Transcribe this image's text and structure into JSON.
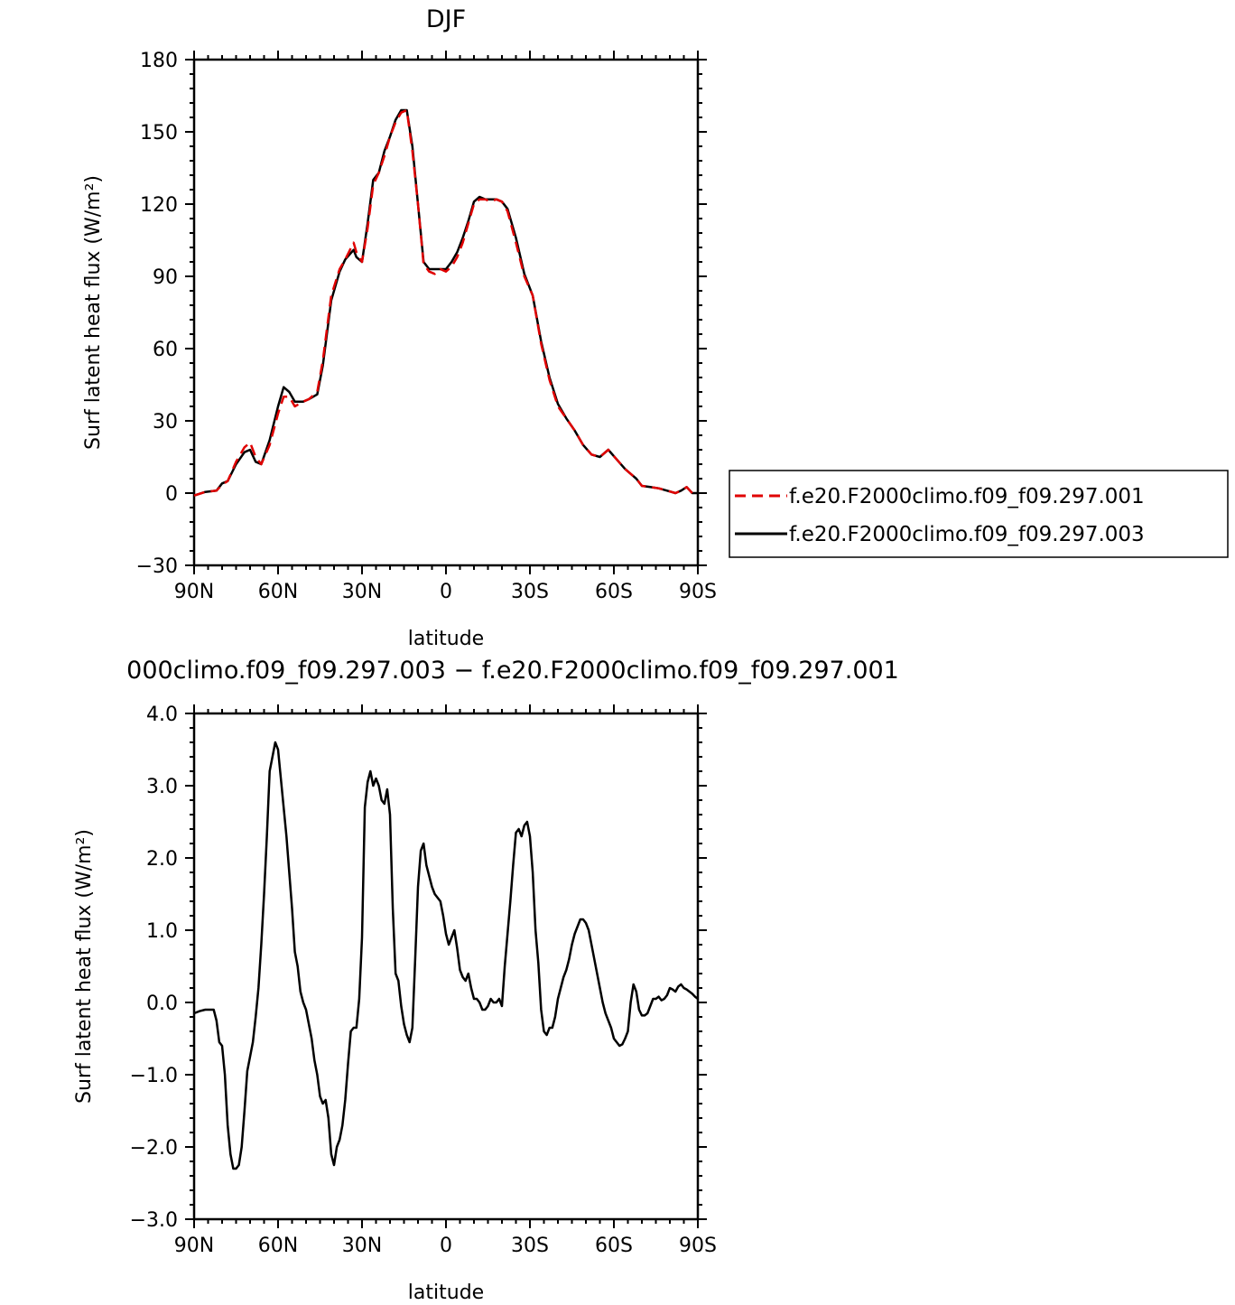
{
  "chart_data": [
    {
      "type": "line",
      "title": "DJF",
      "xlabel": "latitude",
      "ylabel": "Surf latent heat flux (W/m²)",
      "xlim": [
        90,
        -90
      ],
      "ylim": [
        -30,
        180
      ],
      "xticks": [
        90,
        60,
        30,
        0,
        -30,
        -60,
        -90
      ],
      "xtick_labels": [
        "90N",
        "60N",
        "30N",
        "0",
        "30S",
        "60S",
        "90S"
      ],
      "yticks": [
        -30,
        0,
        30,
        60,
        90,
        120,
        150,
        180
      ],
      "ytick_labels": [
        "−30",
        "0",
        "30",
        "60",
        "90",
        "120",
        "150",
        "180"
      ],
      "grid": false,
      "legend": "right",
      "series": [
        {
          "name": "f.e20.F2000climo.f09_f09.297.001",
          "color": "#e00000",
          "dash": "dashed",
          "x": [
            90,
            86,
            82,
            80,
            78,
            75,
            72,
            70,
            68,
            66,
            63,
            60,
            58,
            56,
            54,
            51,
            49,
            46,
            44,
            41,
            38,
            36,
            33,
            32,
            30,
            28,
            26,
            24,
            22,
            20,
            18,
            16,
            14,
            12,
            10,
            8,
            6,
            4,
            2,
            0,
            -2,
            -4,
            -6,
            -8,
            -10,
            -12,
            -14,
            -16,
            -18,
            -20,
            -22,
            -25,
            -28,
            -31,
            -34,
            -37,
            -40,
            -43,
            -46,
            -49,
            -52,
            -55,
            -58,
            -61,
            -64,
            -66,
            -68,
            -70,
            -73,
            -76,
            -79,
            -82,
            -84,
            -86,
            -88,
            -90
          ],
          "y": [
            -1,
            0.5,
            1,
            3.5,
            5,
            13,
            19,
            21,
            15,
            12,
            20,
            33,
            40,
            40,
            36,
            38,
            39,
            42,
            55,
            82,
            93,
            97,
            104,
            100,
            96,
            110,
            128,
            133,
            140,
            148,
            154,
            158,
            159,
            142,
            120,
            95,
            92,
            91,
            93,
            92,
            94,
            98,
            104,
            112,
            120,
            122,
            122,
            121,
            122,
            121,
            117,
            104,
            90,
            82,
            62,
            47,
            36,
            31,
            26,
            20,
            16,
            15,
            18,
            14,
            10,
            8,
            6,
            3,
            2.5,
            2,
            1,
            0,
            1,
            2.5,
            0,
            0
          ]
        },
        {
          "name": "f.e20.F2000climo.f09_f09.297.003",
          "color": "#000000",
          "dash": "solid",
          "x": [
            90,
            86,
            82,
            80,
            78,
            75,
            72,
            70,
            68,
            66,
            63,
            60,
            58,
            56,
            54,
            51,
            49,
            46,
            44,
            41,
            38,
            36,
            33,
            32,
            30,
            28,
            26,
            24,
            22,
            20,
            18,
            16,
            14,
            12,
            10,
            8,
            6,
            4,
            2,
            0,
            -2,
            -4,
            -6,
            -8,
            -10,
            -12,
            -14,
            -16,
            -18,
            -20,
            -22,
            -25,
            -28,
            -31,
            -34,
            -37,
            -40,
            -43,
            -46,
            -49,
            -52,
            -55,
            -58,
            -61,
            -64,
            -66,
            -68,
            -70,
            -73,
            -76,
            -79,
            -82,
            -84,
            -86,
            -88,
            -90
          ],
          "y": [
            -1,
            0.5,
            1,
            4,
            5,
            12,
            17,
            18,
            13,
            12,
            22,
            36,
            44,
            42,
            38,
            38,
            39,
            41,
            53,
            80,
            92,
            97,
            101,
            98,
            96,
            112,
            130,
            133,
            142,
            148,
            155,
            159,
            159,
            144,
            120,
            96,
            93,
            93,
            93,
            93,
            96,
            100,
            106,
            113,
            121,
            123,
            122,
            122,
            122,
            121,
            118,
            106,
            91,
            82,
            63,
            48,
            37,
            31,
            26,
            20,
            16,
            15,
            18,
            14,
            10,
            8,
            6,
            3,
            2.5,
            2,
            1,
            0,
            1,
            2.5,
            0,
            0
          ]
        }
      ]
    },
    {
      "type": "line",
      "title": "000climo.f09_f09.297.003 − f.e20.F2000climo.f09_f09.297.001",
      "xlabel": "latitude",
      "ylabel": "Surf latent heat flux (W/m²)",
      "xlim": [
        90,
        -90
      ],
      "ylim": [
        -3.0,
        4.0
      ],
      "xticks": [
        90,
        60,
        30,
        0,
        -30,
        -60,
        -90
      ],
      "xtick_labels": [
        "90N",
        "60N",
        "30N",
        "0",
        "30S",
        "60S",
        "90S"
      ],
      "yticks": [
        -3,
        -2,
        -1,
        0,
        1,
        2,
        3,
        4
      ],
      "ytick_labels": [
        "−3.0",
        "−2.0",
        "−1.0",
        "0.0",
        "1.0",
        "2.0",
        "3.0",
        "4.0"
      ],
      "grid": false,
      "series": [
        {
          "color": "#000000",
          "x": [
            90,
            88,
            86,
            84,
            83,
            82,
            81,
            80,
            79,
            78,
            77,
            76,
            75,
            74,
            73,
            72,
            71,
            70,
            69,
            68,
            67,
            66,
            65,
            64,
            63,
            62,
            61,
            60,
            59,
            58,
            57,
            56,
            55,
            54,
            53,
            52,
            51,
            50,
            49,
            48,
            47,
            46,
            45,
            44,
            43,
            42,
            41,
            40,
            39,
            38,
            37,
            36,
            35,
            34,
            33,
            32,
            31,
            30,
            29,
            28,
            27,
            26,
            25,
            24,
            23,
            22,
            21,
            20,
            19,
            18,
            17,
            16,
            15,
            14,
            13,
            12,
            11,
            10,
            9,
            8,
            7,
            6,
            5,
            4,
            3,
            2,
            1,
            0,
            -1,
            -2,
            -3,
            -4,
            -5,
            -6,
            -7,
            -8,
            -9,
            -10,
            -11,
            -12,
            -13,
            -14,
            -15,
            -16,
            -17,
            -18,
            -19,
            -20,
            -21,
            -22,
            -23,
            -24,
            -25,
            -26,
            -27,
            -28,
            -29,
            -30,
            -31,
            -32,
            -33,
            -34,
            -35,
            -36,
            -37,
            -38,
            -39,
            -40,
            -41,
            -42,
            -43,
            -44,
            -45,
            -46,
            -47,
            -48,
            -49,
            -50,
            -51,
            -52,
            -53,
            -54,
            -55,
            -56,
            -57,
            -58,
            -59,
            -60,
            -61,
            -62,
            -63,
            -64,
            -65,
            -66,
            -67,
            -68,
            -69,
            -70,
            -71,
            -72,
            -73,
            -74,
            -75,
            -76,
            -77,
            -78,
            -79,
            -80,
            -81,
            -82,
            -83,
            -84,
            -85,
            -86,
            -87,
            -88,
            -89,
            -90
          ],
          "y": [
            -0.15,
            -0.12,
            -0.1,
            -0.1,
            -0.1,
            -0.25,
            -0.55,
            -0.6,
            -1.0,
            -1.7,
            -2.1,
            -2.3,
            -2.3,
            -2.25,
            -2.0,
            -1.5,
            -0.95,
            -0.75,
            -0.55,
            -0.2,
            0.2,
            0.8,
            1.5,
            2.3,
            3.2,
            3.4,
            3.6,
            3.5,
            3.1,
            2.7,
            2.3,
            1.8,
            1.3,
            0.7,
            0.5,
            0.15,
            0.0,
            -0.1,
            -0.3,
            -0.5,
            -0.8,
            -1.0,
            -1.3,
            -1.4,
            -1.35,
            -1.6,
            -2.1,
            -2.25,
            -2.0,
            -1.9,
            -1.7,
            -1.35,
            -0.85,
            -0.4,
            -0.35,
            -0.35,
            0.05,
            0.9,
            2.7,
            3.05,
            3.2,
            3.0,
            3.1,
            3.0,
            2.8,
            2.75,
            2.95,
            2.6,
            1.3,
            0.4,
            0.3,
            -0.05,
            -0.3,
            -0.45,
            -0.55,
            -0.35,
            0.6,
            1.6,
            2.1,
            2.2,
            1.9,
            1.75,
            1.6,
            1.5,
            1.45,
            1.4,
            1.2,
            0.95,
            0.8,
            0.9,
            1.0,
            0.75,
            0.45,
            0.35,
            0.3,
            0.4,
            0.2,
            0.05,
            0.05,
            0.0,
            -0.1,
            -0.1,
            -0.05,
            0.05,
            0.0,
            0.0,
            0.05,
            -0.05,
            0.5,
            0.95,
            1.4,
            1.9,
            2.35,
            2.4,
            2.3,
            2.45,
            2.5,
            2.3,
            1.8,
            1.0,
            0.55,
            -0.1,
            -0.4,
            -0.45,
            -0.35,
            -0.35,
            -0.2,
            0.05,
            0.2,
            0.35,
            0.45,
            0.6,
            0.8,
            0.95,
            1.05,
            1.15,
            1.15,
            1.1,
            1.0,
            0.8,
            0.6,
            0.4,
            0.2,
            0.0,
            -0.15,
            -0.25,
            -0.35,
            -0.5,
            -0.55,
            -0.6,
            -0.58,
            -0.5,
            -0.4,
            0.0,
            0.25,
            0.15,
            -0.1,
            -0.18,
            -0.18,
            -0.15,
            -0.05,
            0.05,
            0.05,
            0.08,
            0.03,
            0.05,
            0.1,
            0.2,
            0.18,
            0.15,
            0.22,
            0.25,
            0.2,
            0.18,
            0.15,
            0.12,
            0.08,
            0.05
          ]
        }
      ]
    }
  ]
}
